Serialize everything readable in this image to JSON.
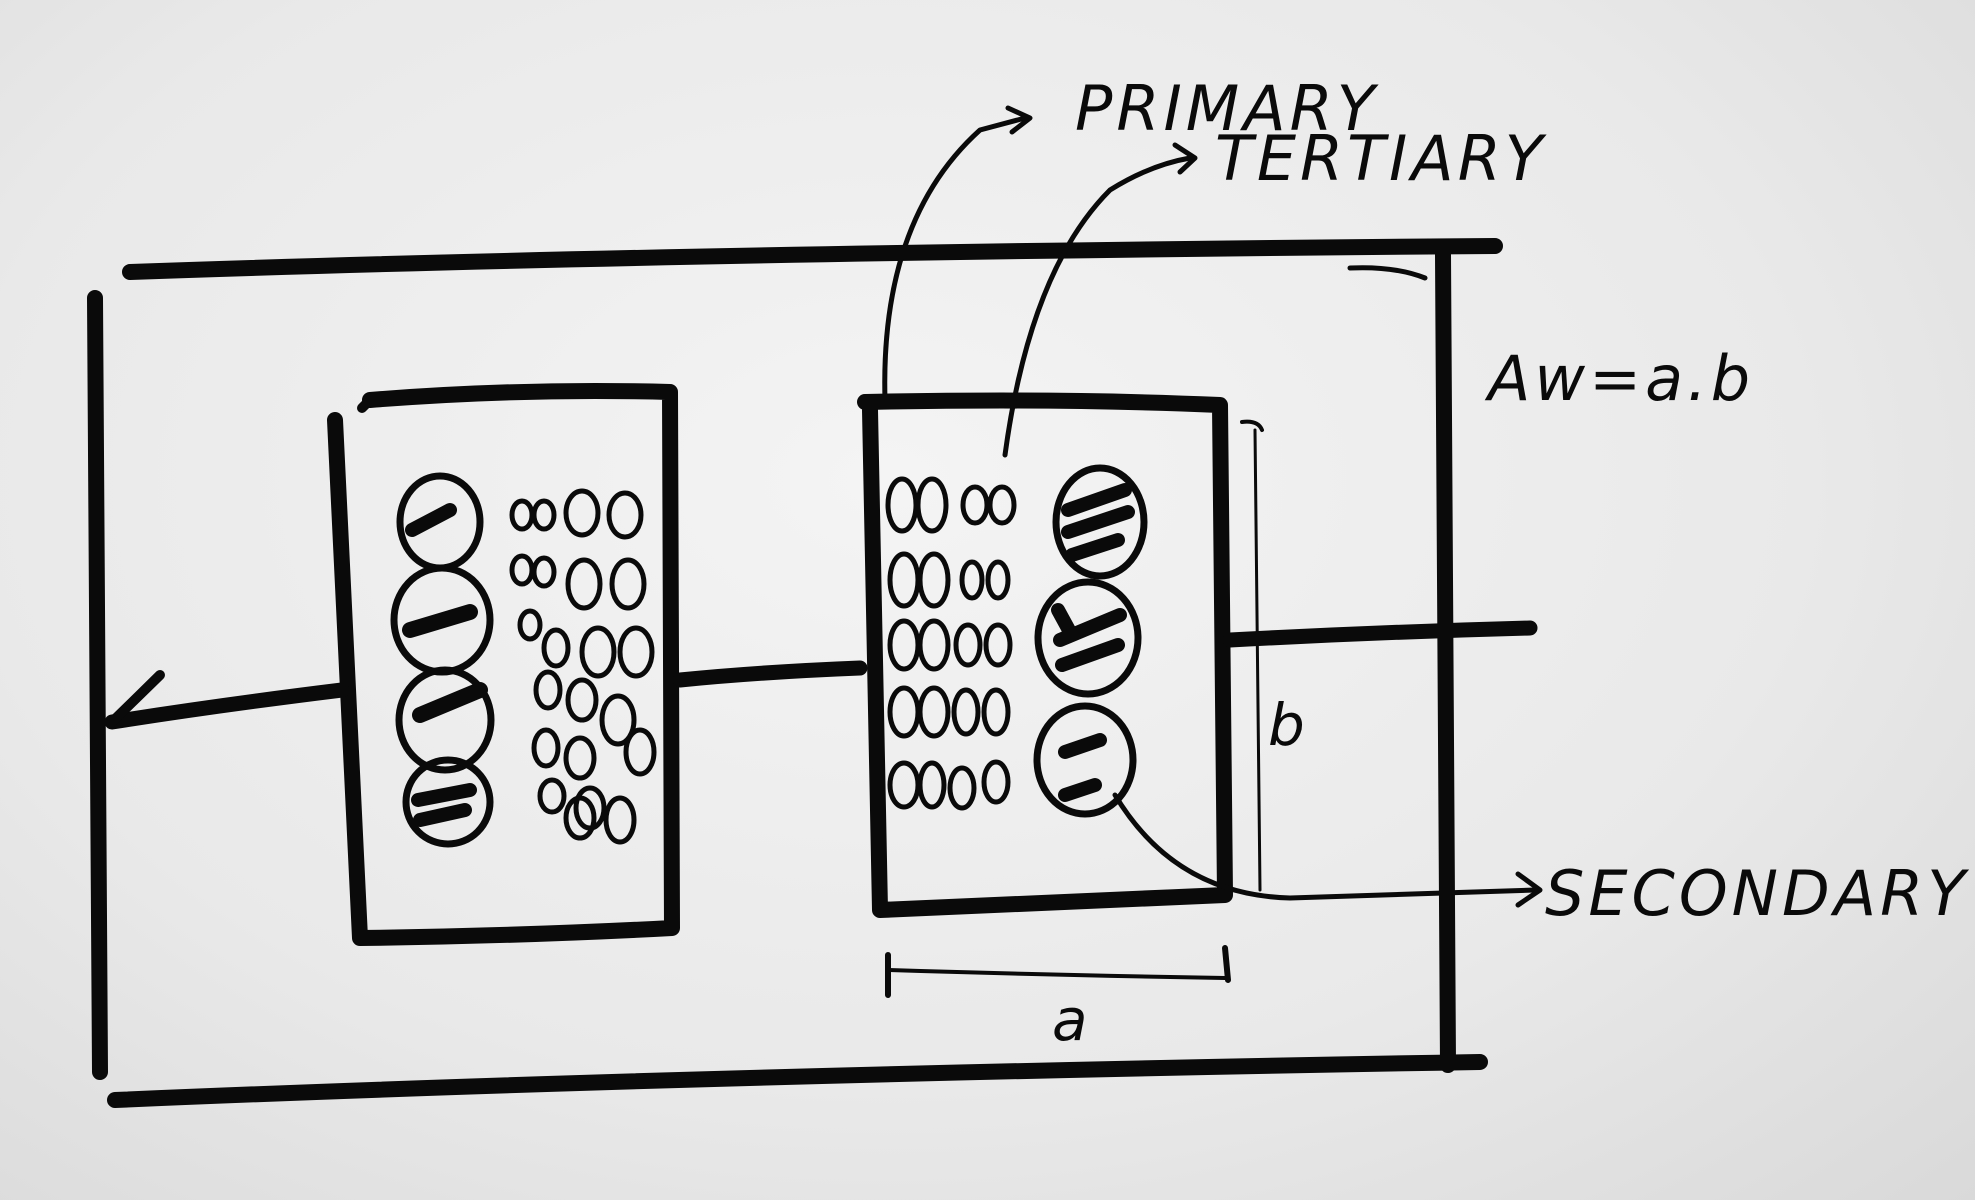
{
  "labels": {
    "primary": "PRIMARY",
    "tertiary": "TERTIARY",
    "secondary": "SECONDARY",
    "window_area": "Aw=a.b",
    "dim_a": "a",
    "dim_b": "b"
  }
}
